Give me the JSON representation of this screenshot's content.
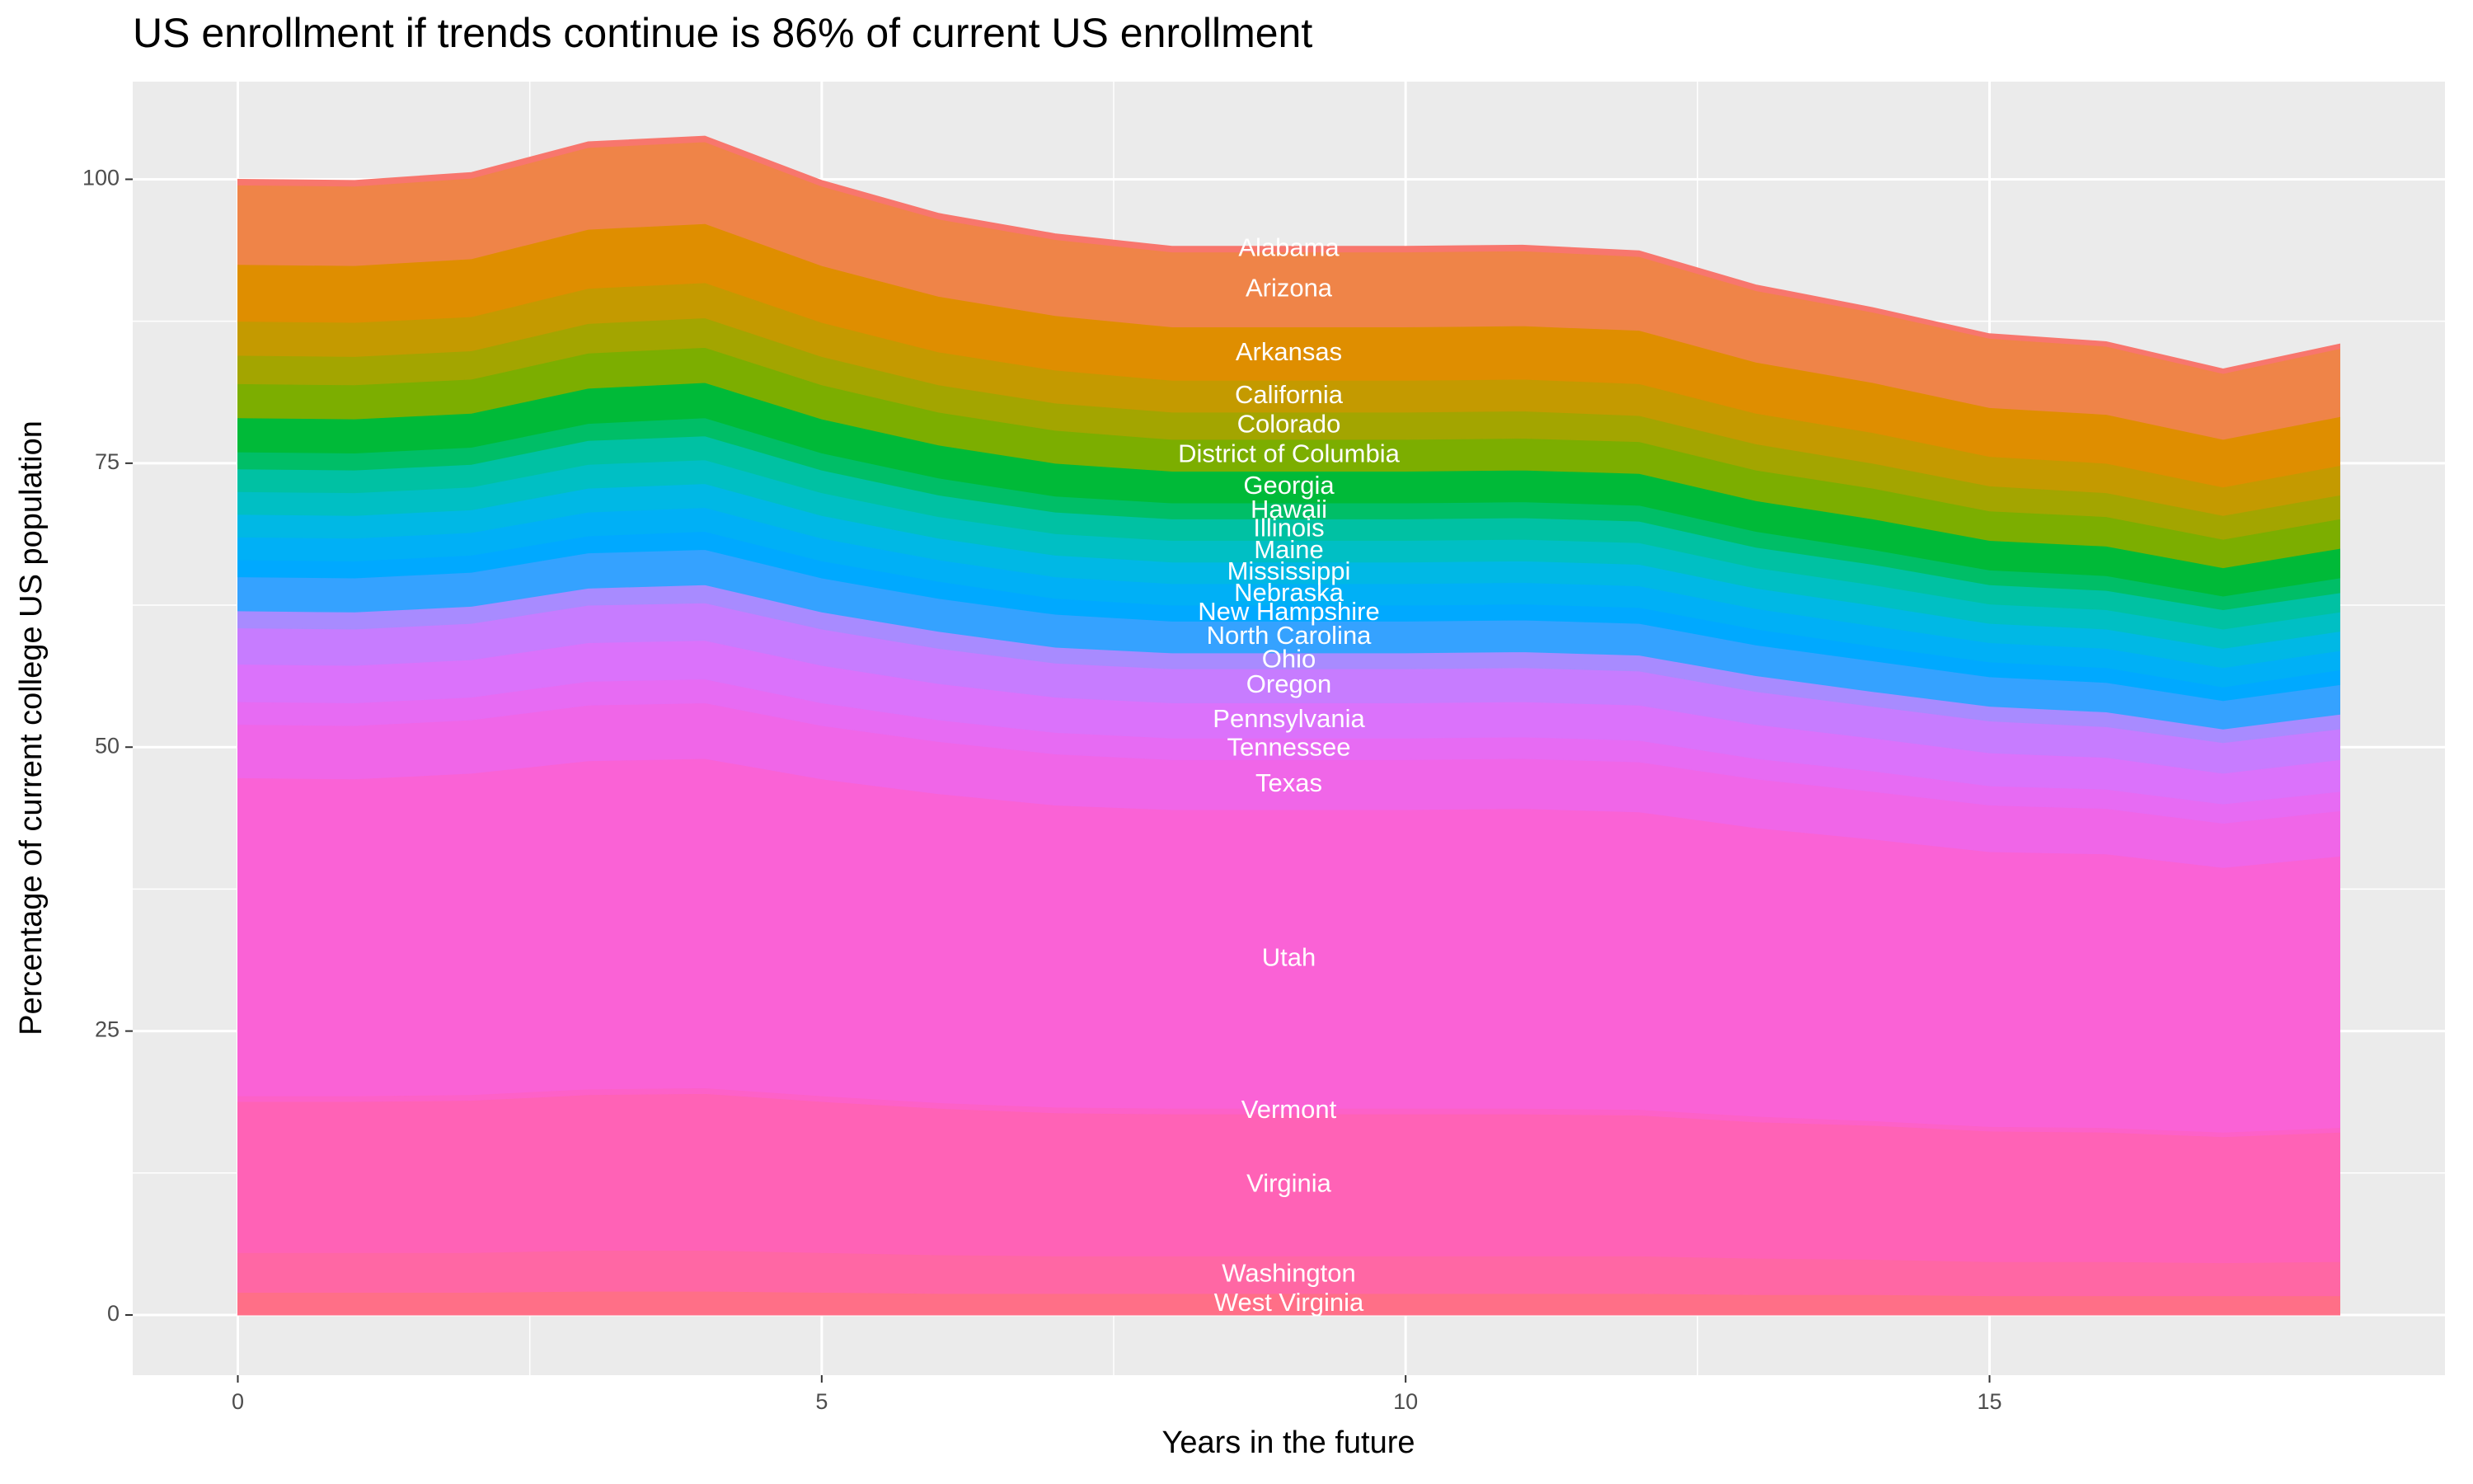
{
  "chart_data": {
    "type": "area",
    "stacked": true,
    "title": "US enrollment if trends continue is 86% of current US enrollment",
    "xlabel": "Years in the future",
    "ylabel": "Percentage of current college US population",
    "x": [
      0,
      1,
      2,
      3,
      4,
      5,
      6,
      7,
      8,
      9,
      10,
      11,
      12,
      13,
      14,
      15,
      16,
      17,
      18
    ],
    "xlim": [
      -0.9,
      18.9
    ],
    "xticks": [
      0,
      5,
      10,
      15
    ],
    "ylim": [
      -5.3,
      108.6
    ],
    "yticks": [
      0,
      25,
      50,
      75,
      100
    ],
    "grid": true,
    "series": [
      {
        "name": "West Virginia",
        "color": "#ff6f87",
        "values": [
          2.0,
          2.0,
          2.0,
          2.1,
          2.1,
          2.0,
          1.9,
          1.9,
          1.9,
          1.9,
          1.9,
          1.9,
          1.9,
          1.8,
          1.8,
          1.7,
          1.7,
          1.7,
          1.7
        ]
      },
      {
        "name": "Washington",
        "color": "#ff67a4",
        "values": [
          3.5,
          3.5,
          3.5,
          3.6,
          3.6,
          3.5,
          3.4,
          3.3,
          3.3,
          3.3,
          3.3,
          3.3,
          3.3,
          3.2,
          3.1,
          3.0,
          3.0,
          2.9,
          3.0
        ]
      },
      {
        "name": "Virginia",
        "color": "#ff62b6",
        "values": [
          13.3,
          13.3,
          13.4,
          13.7,
          13.8,
          13.3,
          12.9,
          12.6,
          12.5,
          12.5,
          12.5,
          12.5,
          12.4,
          12.0,
          11.8,
          11.5,
          11.4,
          11.1,
          11.4
        ]
      },
      {
        "name": "Vermont",
        "color": "#fd61c8",
        "values": [
          0.5,
          0.5,
          0.5,
          0.5,
          0.5,
          0.5,
          0.5,
          0.5,
          0.5,
          0.5,
          0.5,
          0.5,
          0.5,
          0.5,
          0.4,
          0.4,
          0.4,
          0.4,
          0.4
        ]
      },
      {
        "name": "Utah",
        "color": "#fa62d6",
        "values": [
          28.0,
          27.9,
          28.3,
          28.9,
          29.0,
          27.9,
          27.2,
          26.6,
          26.3,
          26.3,
          26.3,
          26.4,
          26.2,
          25.4,
          24.8,
          24.2,
          24.1,
          23.3,
          23.9
        ]
      },
      {
        "name": "Texas",
        "color": "#f066e8",
        "values": [
          4.7,
          4.7,
          4.7,
          4.9,
          4.9,
          4.7,
          4.6,
          4.5,
          4.4,
          4.4,
          4.4,
          4.4,
          4.4,
          4.3,
          4.2,
          4.1,
          4.0,
          3.9,
          4.0
        ]
      },
      {
        "name": "Tennessee",
        "color": "#e76bf3",
        "values": [
          2.0,
          2.0,
          2.0,
          2.1,
          2.1,
          2.0,
          1.9,
          1.9,
          1.9,
          1.9,
          1.9,
          1.9,
          1.9,
          1.8,
          1.8,
          1.7,
          1.7,
          1.7,
          1.7
        ]
      },
      {
        "name": "Pennsylvania",
        "color": "#db72fb",
        "values": [
          3.3,
          3.3,
          3.3,
          3.4,
          3.4,
          3.3,
          3.2,
          3.1,
          3.1,
          3.1,
          3.1,
          3.1,
          3.1,
          3.0,
          2.9,
          2.9,
          2.8,
          2.7,
          2.8
        ]
      },
      {
        "name": "Oregon",
        "color": "#c77cff",
        "values": [
          3.2,
          3.2,
          3.2,
          3.3,
          3.3,
          3.2,
          3.1,
          3.0,
          3.0,
          3.0,
          3.0,
          3.0,
          3.0,
          2.9,
          2.8,
          2.8,
          2.7,
          2.7,
          2.7
        ]
      },
      {
        "name": "Ohio",
        "color": "#a88bff",
        "values": [
          1.5,
          1.5,
          1.5,
          1.5,
          1.6,
          1.5,
          1.5,
          1.4,
          1.4,
          1.4,
          1.4,
          1.4,
          1.4,
          1.4,
          1.3,
          1.3,
          1.3,
          1.2,
          1.3
        ]
      },
      {
        "name": "North Carolina",
        "color": "#35a2ff",
        "values": [
          3.0,
          3.0,
          3.0,
          3.1,
          3.1,
          3.0,
          2.9,
          2.9,
          2.8,
          2.8,
          2.8,
          2.8,
          2.8,
          2.7,
          2.7,
          2.6,
          2.6,
          2.5,
          2.6
        ]
      },
      {
        "name": "New Hampshire",
        "color": "#00a9ff",
        "values": [
          1.5,
          1.5,
          1.5,
          1.5,
          1.6,
          1.5,
          1.5,
          1.4,
          1.4,
          1.4,
          1.4,
          1.4,
          1.4,
          1.4,
          1.3,
          1.3,
          1.3,
          1.2,
          1.3
        ]
      },
      {
        "name": "Nebraska",
        "color": "#00b0f6",
        "values": [
          2.0,
          2.0,
          2.0,
          2.1,
          2.1,
          2.0,
          1.9,
          1.9,
          1.9,
          1.9,
          1.9,
          1.9,
          1.9,
          1.8,
          1.8,
          1.7,
          1.7,
          1.7,
          1.7
        ]
      },
      {
        "name": "Mississippi",
        "color": "#00b8e5",
        "values": [
          2.0,
          2.0,
          2.0,
          2.1,
          2.1,
          2.0,
          1.9,
          1.9,
          1.9,
          1.9,
          1.9,
          1.9,
          1.9,
          1.8,
          1.8,
          1.7,
          1.7,
          1.7,
          1.7
        ]
      },
      {
        "name": "Maine",
        "color": "#00bfc4",
        "values": [
          2.0,
          2.0,
          2.0,
          2.1,
          2.1,
          2.0,
          1.9,
          1.9,
          1.9,
          1.9,
          1.9,
          1.9,
          1.9,
          1.8,
          1.8,
          1.7,
          1.7,
          1.7,
          1.7
        ]
      },
      {
        "name": "Illinois",
        "color": "#00c1a3",
        "values": [
          2.0,
          2.0,
          2.0,
          2.1,
          2.1,
          2.0,
          1.9,
          1.9,
          1.9,
          1.9,
          1.9,
          1.9,
          1.9,
          1.8,
          1.8,
          1.7,
          1.7,
          1.7,
          1.7
        ]
      },
      {
        "name": "Hawaii",
        "color": "#00be67",
        "values": [
          1.5,
          1.5,
          1.5,
          1.5,
          1.6,
          1.5,
          1.5,
          1.4,
          1.4,
          1.4,
          1.4,
          1.4,
          1.4,
          1.4,
          1.3,
          1.3,
          1.3,
          1.2,
          1.3
        ]
      },
      {
        "name": "Georgia",
        "color": "#00ba38",
        "values": [
          3.0,
          3.0,
          3.0,
          3.1,
          3.1,
          3.0,
          2.9,
          2.9,
          2.8,
          2.8,
          2.8,
          2.8,
          2.8,
          2.7,
          2.7,
          2.6,
          2.6,
          2.5,
          2.6
        ]
      },
      {
        "name": "District of Columbia",
        "color": "#7cae00",
        "values": [
          3.0,
          3.0,
          3.0,
          3.1,
          3.1,
          3.0,
          2.9,
          2.9,
          2.8,
          2.8,
          2.8,
          2.8,
          2.8,
          2.7,
          2.7,
          2.6,
          2.6,
          2.5,
          2.6
        ]
      },
      {
        "name": "Colorado",
        "color": "#a3a500",
        "values": [
          2.5,
          2.5,
          2.5,
          2.6,
          2.6,
          2.5,
          2.4,
          2.4,
          2.4,
          2.4,
          2.4,
          2.4,
          2.3,
          2.3,
          2.2,
          2.2,
          2.1,
          2.1,
          2.1
        ]
      },
      {
        "name": "California",
        "color": "#c49a00",
        "values": [
          3.0,
          3.0,
          3.0,
          3.1,
          3.1,
          3.0,
          2.9,
          2.9,
          2.8,
          2.8,
          2.8,
          2.8,
          2.8,
          2.7,
          2.7,
          2.6,
          2.6,
          2.5,
          2.6
        ]
      },
      {
        "name": "Arkansas",
        "color": "#df8e00",
        "values": [
          5.0,
          5.0,
          5.1,
          5.2,
          5.2,
          5.0,
          4.9,
          4.8,
          4.7,
          4.7,
          4.7,
          4.7,
          4.7,
          4.5,
          4.4,
          4.3,
          4.3,
          4.2,
          4.3
        ]
      },
      {
        "name": "Arizona",
        "color": "#ef8448",
        "values": [
          7.0,
          7.0,
          7.1,
          7.2,
          7.2,
          7.0,
          6.8,
          6.7,
          6.6,
          6.6,
          6.6,
          6.6,
          6.5,
          6.3,
          6.2,
          6.1,
          6.0,
          5.8,
          6.0
        ]
      },
      {
        "name": "Alabama",
        "color": "#f8766d",
        "values": [
          0.5,
          0.5,
          0.5,
          0.5,
          0.5,
          0.5,
          0.5,
          0.5,
          0.5,
          0.5,
          0.5,
          0.5,
          0.5,
          0.5,
          0.4,
          0.4,
          0.4,
          0.4,
          0.4
        ]
      }
    ]
  }
}
